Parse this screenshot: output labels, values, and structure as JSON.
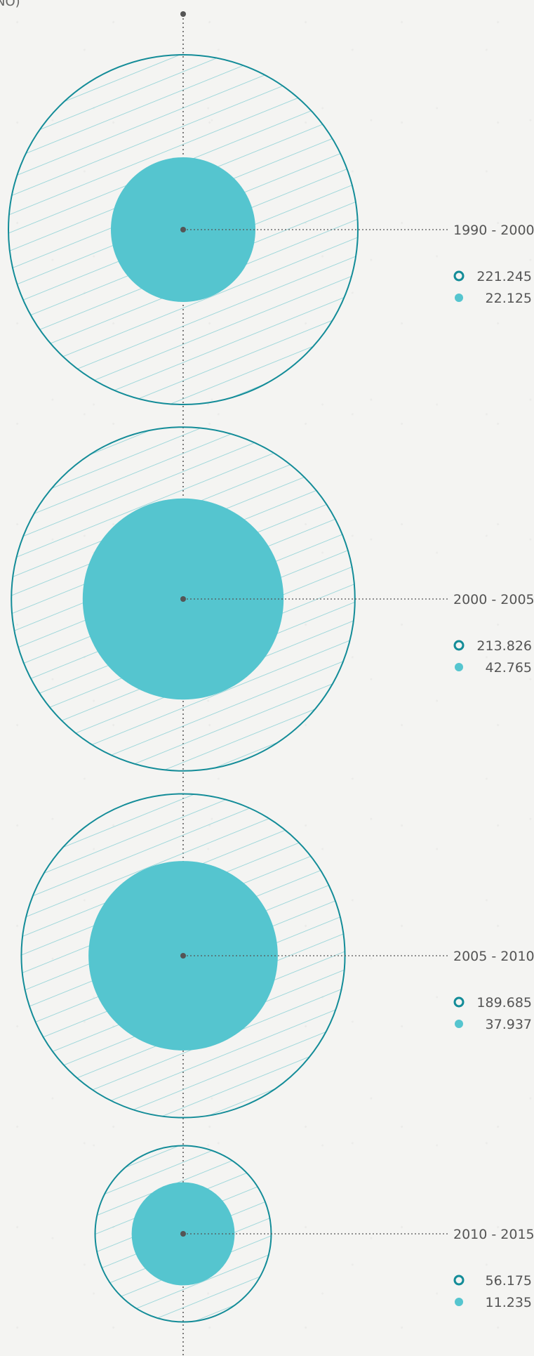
{
  "title_fragment": "NO)",
  "chart_data": {
    "type": "bubble",
    "legend_placement": "right",
    "colors": {
      "outer_stroke": "#138c98",
      "outer_hatch": "#87cfd4",
      "inner_fill": "#55c5cf",
      "axis": "#555555",
      "text": "#555555"
    },
    "series": [
      {
        "name": "",
        "marker": "ring",
        "values": [
          221245,
          213826,
          189685,
          56175
        ]
      },
      {
        "name": "",
        "marker": "dot",
        "values": [
          22125,
          42765,
          37937,
          11235
        ]
      }
    ],
    "categories": [
      {
        "period": "1990 - 2000",
        "outer": 221245,
        "inner": 22125,
        "outer_label": "221.245",
        "inner_label": "22.125"
      },
      {
        "period": "2000 - 2005",
        "outer": 213826,
        "inner": 42765,
        "outer_label": "213.826",
        "inner_label": "42.765"
      },
      {
        "period": "2005 - 2010",
        "outer": 189685,
        "inner": 37937,
        "outer_label": "189.685",
        "inner_label": "37.937"
      },
      {
        "period": "2010 - 2015",
        "outer": 56175,
        "inner": 11235,
        "outer_label": "56.175",
        "inner_label": "11.235"
      }
    ]
  }
}
